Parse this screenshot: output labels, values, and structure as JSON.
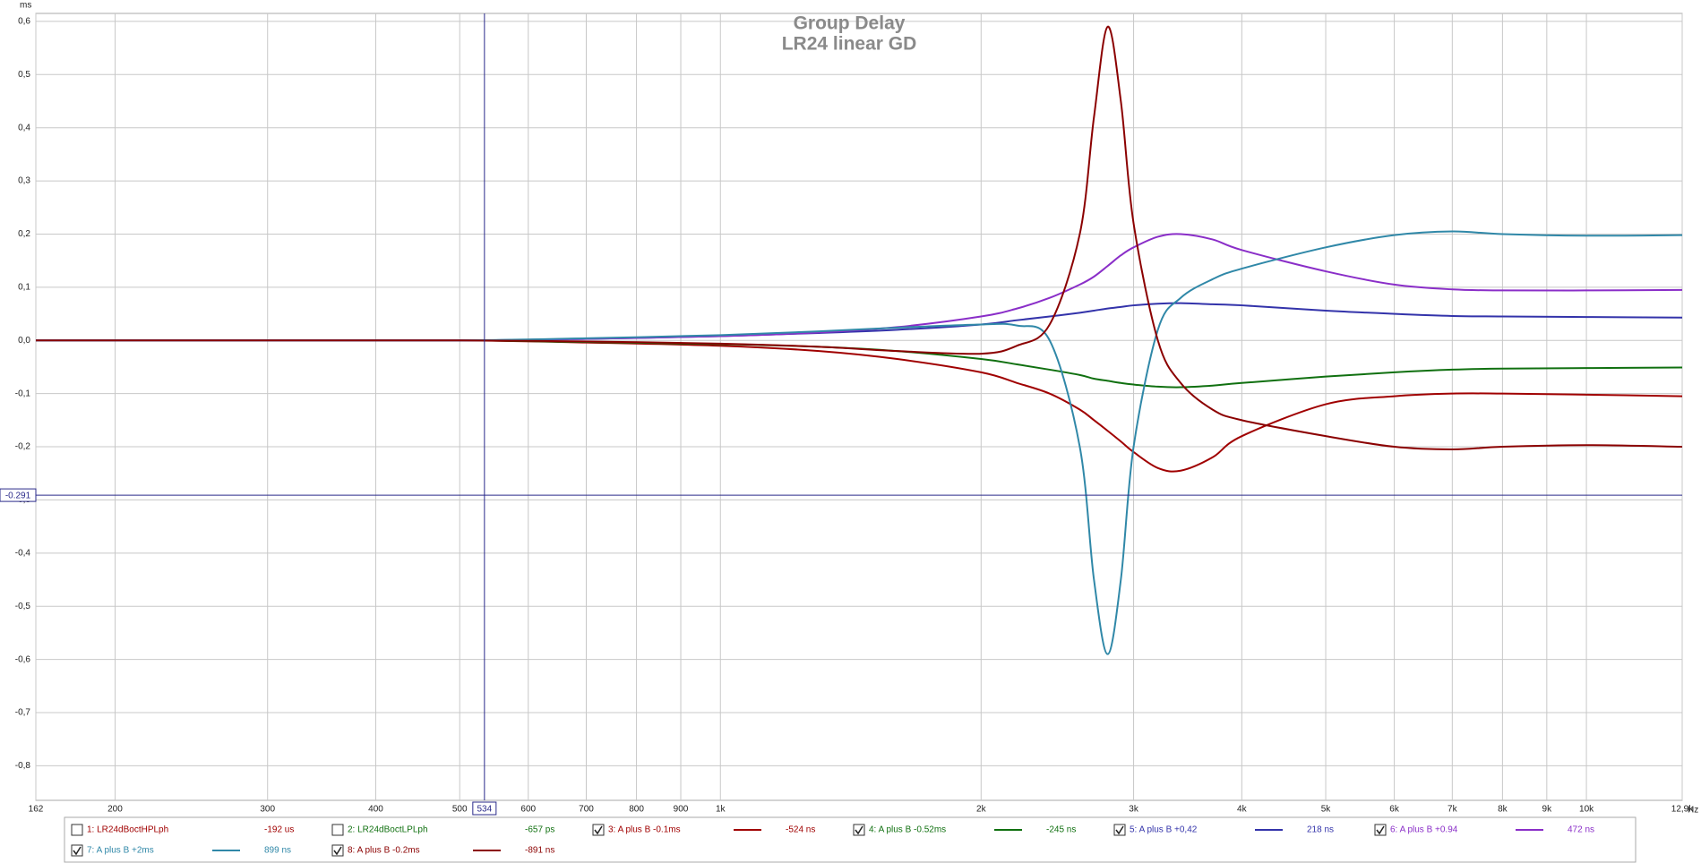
{
  "chart_data": {
    "type": "line",
    "title": "Group Delay",
    "subtitle": "LR24 linear GD",
    "y_unit": "ms",
    "x_unit": "Hz",
    "log_x": true,
    "grid": true,
    "xlim": [
      162,
      12900
    ],
    "ylim": [
      -0.865,
      0.615
    ],
    "xticks": [
      162,
      200,
      300,
      400,
      500,
      600,
      700,
      800,
      900,
      {
        "value": 1000,
        "label": "1k"
      },
      {
        "value": 2000,
        "label": "2k"
      },
      {
        "value": 3000,
        "label": "3k"
      },
      {
        "value": 4000,
        "label": "4k"
      },
      {
        "value": 5000,
        "label": "5k"
      },
      {
        "value": 6000,
        "label": "6k"
      },
      {
        "value": 7000,
        "label": "7k"
      },
      {
        "value": 8000,
        "label": "8k"
      },
      {
        "value": 9000,
        "label": "9k"
      },
      {
        "value": 10000,
        "label": "10k"
      },
      {
        "value": 12900,
        "label": "12,9k"
      }
    ],
    "yticks": [
      {
        "value": 0.6,
        "label": "0,6"
      },
      {
        "value": 0.5,
        "label": "0,5"
      },
      {
        "value": 0.4,
        "label": "0,4"
      },
      {
        "value": 0.3,
        "label": "0,3"
      },
      {
        "value": 0.2,
        "label": "0,2"
      },
      {
        "value": 0.1,
        "label": "0,1"
      },
      {
        "value": 0,
        "label": "0,0"
      },
      {
        "value": -0.1,
        "label": "-0,1"
      },
      {
        "value": -0.2,
        "label": "-0,2"
      },
      {
        "value": -0.3,
        "label": "-0,3"
      },
      {
        "value": -0.4,
        "label": "-0,4"
      },
      {
        "value": -0.5,
        "label": "-0,5"
      },
      {
        "value": -0.6,
        "label": "-0,6"
      },
      {
        "value": -0.7,
        "label": "-0,7"
      },
      {
        "value": -0.8,
        "label": "-0,8"
      }
    ],
    "cursor_x": 534,
    "cursor_y": -0.291,
    "x": [
      162,
      300,
      500,
      700,
      1000,
      1300,
      1600,
      2000,
      2200,
      2400,
      2600,
      2700,
      2800,
      2900,
      3000,
      3200,
      3400,
      3700,
      4000,
      5000,
      6000,
      7000,
      8000,
      10000,
      12900
    ],
    "series": [
      {
        "name": "1: LR24dBoctHPLph",
        "color": "#a00000",
        "checked": false,
        "readout": "-192 us"
      },
      {
        "name": "2: LR24dBoctLPLph",
        "color": "#107010",
        "checked": false,
        "readout": "-657 ps"
      },
      {
        "name": "3: A plus B -0.1ms",
        "color": "#a00000",
        "checked": true,
        "readout": "-524 ns",
        "values": [
          0,
          0,
          0,
          -0.004,
          -0.01,
          -0.02,
          -0.035,
          -0.06,
          -0.08,
          -0.1,
          -0.13,
          -0.15,
          -0.17,
          -0.19,
          -0.21,
          -0.24,
          -0.245,
          -0.22,
          -0.18,
          -0.12,
          -0.105,
          -0.1,
          -0.1,
          -0.102,
          -0.105
        ]
      },
      {
        "name": "4: A plus B -0.52ms",
        "color": "#107010",
        "checked": true,
        "readout": "-245 ns",
        "values": [
          0,
          0,
          0,
          -0.003,
          -0.007,
          -0.012,
          -0.02,
          -0.035,
          -0.045,
          -0.055,
          -0.065,
          -0.072,
          -0.076,
          -0.08,
          -0.083,
          -0.087,
          -0.088,
          -0.085,
          -0.08,
          -0.068,
          -0.06,
          -0.055,
          -0.053,
          -0.052,
          -0.051
        ]
      },
      {
        "name": "5: A plus B +0,42",
        "color": "#3333aa",
        "checked": true,
        "readout": "218 ns",
        "values": [
          0,
          0,
          0,
          0.003,
          0.008,
          0.014,
          0.02,
          0.03,
          0.038,
          0.045,
          0.052,
          0.056,
          0.06,
          0.063,
          0.066,
          0.069,
          0.07,
          0.068,
          0.066,
          0.056,
          0.05,
          0.046,
          0.045,
          0.044,
          0.043
        ]
      },
      {
        "name": "6: A plus B +0.94",
        "color": "#8a2ec8",
        "checked": true,
        "readout": "472 ns",
        "values": [
          0,
          0,
          0,
          0.003,
          0.008,
          0.015,
          0.025,
          0.045,
          0.06,
          0.08,
          0.105,
          0.12,
          0.14,
          0.16,
          0.175,
          0.195,
          0.2,
          0.19,
          0.17,
          0.13,
          0.105,
          0.096,
          0.094,
          0.094,
          0.095
        ]
      },
      {
        "name": "7: A plus B +2ms",
        "color": "#3088a8",
        "checked": true,
        "readout": "899 ns",
        "values": [
          0,
          0,
          0,
          0.004,
          0.01,
          0.017,
          0.024,
          0.03,
          0.028,
          0.0,
          -0.2,
          -0.45,
          -0.59,
          -0.45,
          -0.2,
          0.02,
          0.08,
          0.115,
          0.135,
          0.175,
          0.198,
          0.205,
          0.2,
          0.197,
          0.198
        ]
      },
      {
        "name": "8: A plus B -0.2ms",
        "color": "#8b0000",
        "checked": true,
        "readout": "-891 ns",
        "values": [
          0,
          0,
          0,
          -0.002,
          -0.006,
          -0.012,
          -0.02,
          -0.025,
          -0.01,
          0.03,
          0.2,
          0.42,
          0.59,
          0.45,
          0.22,
          0.0,
          -0.08,
          -0.13,
          -0.15,
          -0.18,
          -0.2,
          -0.205,
          -0.2,
          -0.197,
          -0.2
        ]
      }
    ]
  }
}
